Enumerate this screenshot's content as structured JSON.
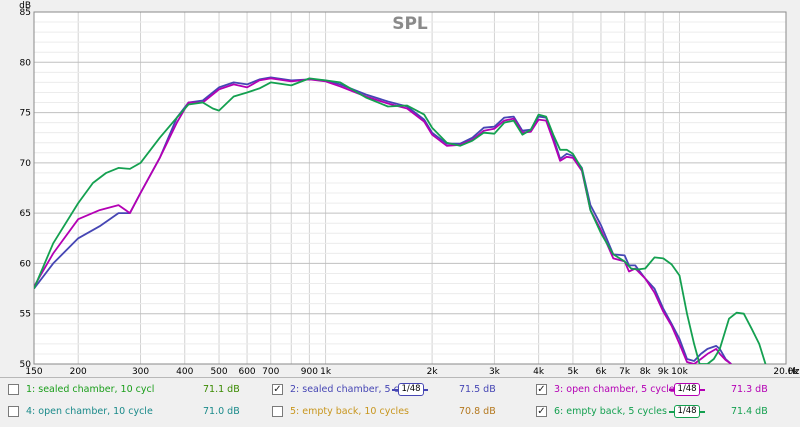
{
  "chart_data": {
    "type": "line",
    "title": "SPL",
    "ylabel": "dB",
    "xunit": "Hz",
    "x_scale": "log",
    "xlim": [
      150,
      20000
    ],
    "ylim": [
      50,
      85
    ],
    "x_ticks": [
      {
        "v": 150,
        "label": "150"
      },
      {
        "v": 200,
        "label": "200"
      },
      {
        "v": 300,
        "label": "300"
      },
      {
        "v": 400,
        "label": "400"
      },
      {
        "v": 500,
        "label": "500"
      },
      {
        "v": 600,
        "label": "600"
      },
      {
        "v": 700,
        "label": "700"
      },
      {
        "v": 900,
        "label": "900"
      },
      {
        "v": 1000,
        "label": "1k"
      },
      {
        "v": 2000,
        "label": "2k"
      },
      {
        "v": 3000,
        "label": "3k"
      },
      {
        "v": 4000,
        "label": "4k"
      },
      {
        "v": 5000,
        "label": "5k"
      },
      {
        "v": 6000,
        "label": "6k"
      },
      {
        "v": 7000,
        "label": "7k"
      },
      {
        "v": 8000,
        "label": "8k"
      },
      {
        "v": 9000,
        "label": "9k"
      },
      {
        "v": 10000,
        "label": "10k"
      },
      {
        "v": 20000,
        "label": "20.0k"
      }
    ],
    "y_ticks": [
      50,
      55,
      60,
      65,
      70,
      75,
      80,
      85
    ],
    "grid": true,
    "series": [
      {
        "name": "sealed chamber, 5 cycle",
        "color": "#4646b4",
        "points": [
          [
            150,
            57.5
          ],
          [
            170,
            60
          ],
          [
            200,
            62.5
          ],
          [
            230,
            63.7
          ],
          [
            260,
            65
          ],
          [
            280,
            65
          ],
          [
            300,
            67
          ],
          [
            340,
            70.5
          ],
          [
            380,
            74.5
          ],
          [
            410,
            76
          ],
          [
            450,
            76.2
          ],
          [
            500,
            77.5
          ],
          [
            550,
            78
          ],
          [
            600,
            77.8
          ],
          [
            650,
            78.3
          ],
          [
            700,
            78.5
          ],
          [
            800,
            78.2
          ],
          [
            900,
            78.3
          ],
          [
            1000,
            78.2
          ],
          [
            1100,
            77.8
          ],
          [
            1300,
            76.8
          ],
          [
            1500,
            76.1
          ],
          [
            1700,
            75.6
          ],
          [
            1900,
            74.3
          ],
          [
            2000,
            73
          ],
          [
            2200,
            71.9
          ],
          [
            2400,
            71.9
          ],
          [
            2600,
            72.5
          ],
          [
            2800,
            73.5
          ],
          [
            3000,
            73.6
          ],
          [
            3200,
            74.5
          ],
          [
            3400,
            74.6
          ],
          [
            3600,
            73.2
          ],
          [
            3800,
            73.3
          ],
          [
            4000,
            74.6
          ],
          [
            4200,
            74.5
          ],
          [
            4400,
            72.5
          ],
          [
            4600,
            70.4
          ],
          [
            4800,
            70.9
          ],
          [
            5000,
            70.7
          ],
          [
            5300,
            69.5
          ],
          [
            5600,
            65.8
          ],
          [
            6000,
            63.8
          ],
          [
            6500,
            60.9
          ],
          [
            7000,
            60.8
          ],
          [
            7200,
            59.8
          ],
          [
            7500,
            59.8
          ],
          [
            8000,
            58.5
          ],
          [
            8500,
            57.5
          ],
          [
            9000,
            55.5
          ],
          [
            9500,
            54
          ],
          [
            10000,
            52.5
          ],
          [
            10500,
            50.5
          ],
          [
            11000,
            50.3
          ],
          [
            11500,
            51
          ],
          [
            12000,
            51.5
          ],
          [
            12700,
            51.8
          ],
          [
            13000,
            51.5
          ],
          [
            13500,
            50.5
          ],
          [
            14000,
            50
          ]
        ]
      },
      {
        "name": "open chamber, 5 cycles",
        "color": "#b400b4",
        "points": [
          [
            150,
            57.7
          ],
          [
            170,
            61
          ],
          [
            200,
            64.4
          ],
          [
            230,
            65.3
          ],
          [
            260,
            65.8
          ],
          [
            280,
            65
          ],
          [
            300,
            67
          ],
          [
            340,
            70.5
          ],
          [
            380,
            74
          ],
          [
            410,
            76
          ],
          [
            450,
            76
          ],
          [
            500,
            77.3
          ],
          [
            550,
            77.8
          ],
          [
            600,
            77.5
          ],
          [
            650,
            78.2
          ],
          [
            700,
            78.4
          ],
          [
            800,
            78.1
          ],
          [
            900,
            78.3
          ],
          [
            1000,
            78.1
          ],
          [
            1100,
            77.6
          ],
          [
            1300,
            76.6
          ],
          [
            1500,
            75.9
          ],
          [
            1700,
            75.4
          ],
          [
            1900,
            74.1
          ],
          [
            2000,
            72.8
          ],
          [
            2200,
            71.7
          ],
          [
            2400,
            71.8
          ],
          [
            2600,
            72.3
          ],
          [
            2800,
            73.2
          ],
          [
            3000,
            73.4
          ],
          [
            3200,
            74.2
          ],
          [
            3400,
            74.4
          ],
          [
            3600,
            73
          ],
          [
            3800,
            73.1
          ],
          [
            4000,
            74.3
          ],
          [
            4200,
            74.2
          ],
          [
            4400,
            72.2
          ],
          [
            4600,
            70.2
          ],
          [
            4800,
            70.6
          ],
          [
            5000,
            70.5
          ],
          [
            5300,
            69.2
          ],
          [
            5600,
            65.3
          ],
          [
            6000,
            63.3
          ],
          [
            6500,
            60.5
          ],
          [
            7000,
            60.2
          ],
          [
            7200,
            59.2
          ],
          [
            7500,
            59.5
          ],
          [
            8000,
            58.5
          ],
          [
            8500,
            57.1
          ],
          [
            9000,
            55.2
          ],
          [
            9500,
            53.8
          ],
          [
            10000,
            52
          ],
          [
            10500,
            50.2
          ],
          [
            11000,
            50
          ],
          [
            11500,
            50.5
          ],
          [
            12000,
            51
          ],
          [
            12700,
            51.5
          ],
          [
            13000,
            51
          ],
          [
            13500,
            50.4
          ],
          [
            14000,
            50
          ]
        ]
      },
      {
        "name": "empty back, 5 cycles",
        "color": "#14a050",
        "points": [
          [
            150,
            57.5
          ],
          [
            170,
            62
          ],
          [
            200,
            66
          ],
          [
            220,
            68
          ],
          [
            240,
            69
          ],
          [
            260,
            69.5
          ],
          [
            280,
            69.4
          ],
          [
            300,
            70
          ],
          [
            340,
            72.5
          ],
          [
            380,
            74.5
          ],
          [
            410,
            75.8
          ],
          [
            450,
            76
          ],
          [
            480,
            75.4
          ],
          [
            500,
            75.2
          ],
          [
            550,
            76.6
          ],
          [
            600,
            77
          ],
          [
            650,
            77.4
          ],
          [
            700,
            78
          ],
          [
            800,
            77.7
          ],
          [
            900,
            78.4
          ],
          [
            1000,
            78.2
          ],
          [
            1100,
            78
          ],
          [
            1300,
            76.5
          ],
          [
            1500,
            75.6
          ],
          [
            1700,
            75.7
          ],
          [
            1900,
            74.8
          ],
          [
            2000,
            73.5
          ],
          [
            2200,
            72
          ],
          [
            2400,
            71.7
          ],
          [
            2600,
            72.2
          ],
          [
            2800,
            73
          ],
          [
            3000,
            72.9
          ],
          [
            3200,
            74
          ],
          [
            3400,
            74.2
          ],
          [
            3600,
            72.8
          ],
          [
            3800,
            73.3
          ],
          [
            4000,
            74.8
          ],
          [
            4200,
            74.6
          ],
          [
            4400,
            72.8
          ],
          [
            4600,
            71.3
          ],
          [
            4800,
            71.3
          ],
          [
            5000,
            70.9
          ],
          [
            5300,
            69.4
          ],
          [
            5600,
            65.3
          ],
          [
            6000,
            63
          ],
          [
            6500,
            60.9
          ],
          [
            7000,
            60.2
          ],
          [
            7300,
            59.5
          ],
          [
            7600,
            59.4
          ],
          [
            8000,
            59.5
          ],
          [
            8500,
            60.6
          ],
          [
            9000,
            60.5
          ],
          [
            9500,
            59.9
          ],
          [
            10000,
            58.8
          ],
          [
            10500,
            55
          ],
          [
            11000,
            52
          ],
          [
            11400,
            50
          ],
          [
            12000,
            50
          ],
          [
            12500,
            50.5
          ],
          [
            13000,
            51.5
          ],
          [
            13800,
            54.5
          ],
          [
            14500,
            55.1
          ],
          [
            15200,
            55
          ],
          [
            16000,
            53.5
          ],
          [
            16800,
            52
          ],
          [
            17500,
            50
          ]
        ]
      }
    ]
  },
  "legend": [
    {
      "label": "1: sealed chamber, 10 cycl",
      "checked": false,
      "color": "#1a9e1a",
      "value": "71.1 dB",
      "value_color": "#3a8a00",
      "smoothing": ""
    },
    {
      "label": "2: sealed chamber, 5 cycle",
      "checked": true,
      "color": "#4646b4",
      "value": "71.5 dB",
      "value_color": "#4646b4",
      "smoothing": "1/48"
    },
    {
      "label": "3: open chamber, 5 cycles",
      "checked": true,
      "color": "#b400b4",
      "value": "71.3 dB",
      "value_color": "#b400b4",
      "smoothing": "1/48"
    },
    {
      "label": "4: open chamber, 10 cycle",
      "checked": false,
      "color": "#1a8a8a",
      "value": "71.0 dB",
      "value_color": "#1a8a8a",
      "smoothing": ""
    },
    {
      "label": "5: empty back, 10 cycles",
      "checked": false,
      "color": "#c8961e",
      "value": "70.8 dB",
      "value_color": "#b4781e",
      "smoothing": ""
    },
    {
      "label": "6: empty back, 5 cycles",
      "checked": true,
      "color": "#14a050",
      "value": "71.4 dB",
      "value_color": "#14a050",
      "smoothing": "1/48"
    }
  ]
}
